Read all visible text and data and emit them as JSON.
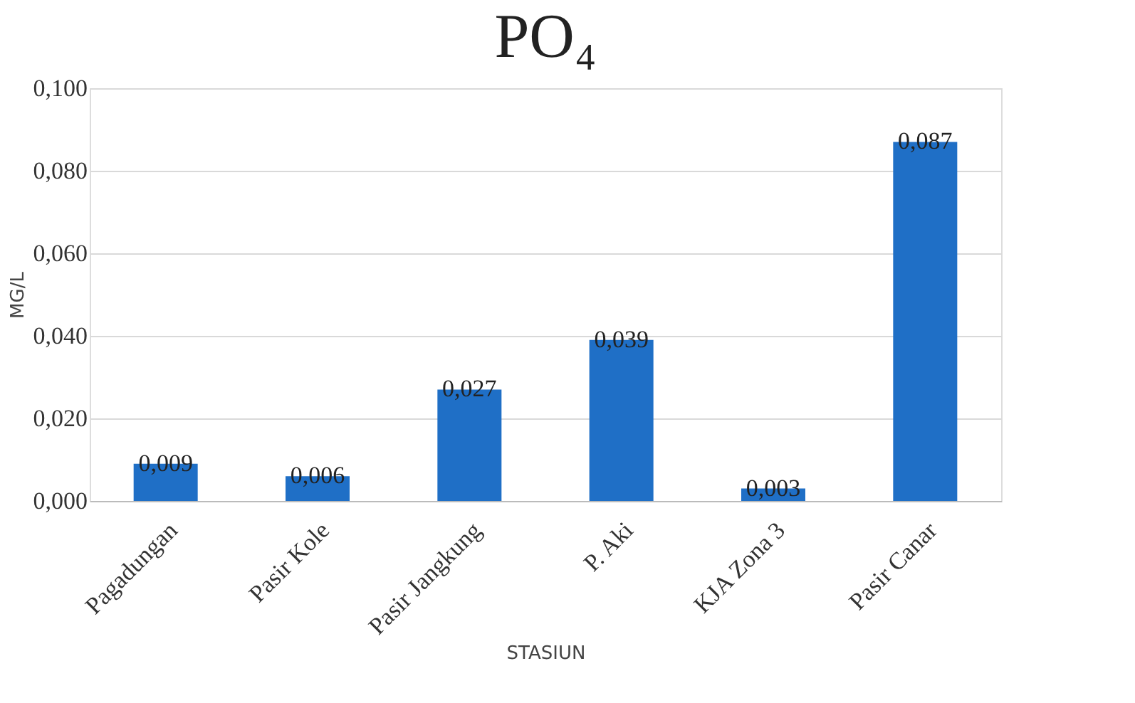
{
  "chart_data": {
    "type": "bar",
    "title": "PO₄",
    "xlabel": "STASIUN",
    "ylabel": "MG/L",
    "categories": [
      "Pagadungan",
      "Pasir Kole",
      "Pasir Jangkung",
      "P. Aki",
      "KJA Zona 3",
      "Pasir Canar"
    ],
    "values": [
      0.009,
      0.006,
      0.027,
      0.039,
      0.003,
      0.087
    ],
    "value_labels": [
      "0,009",
      "0,006",
      "0,027",
      "0,039",
      "0,003",
      "0,087"
    ],
    "color": "#1f6fc6",
    "ylim": [
      0,
      0.1
    ],
    "yticks": [
      {
        "value": 0,
        "label": "0,000"
      },
      {
        "value": 0.02,
        "label": "0,020"
      },
      {
        "value": 0.04,
        "label": "0,040"
      },
      {
        "value": 0.06,
        "label": "0,060"
      },
      {
        "value": 0.08,
        "label": "0,080"
      },
      {
        "value": 0.1,
        "label": "0,100"
      }
    ],
    "grid": true
  }
}
